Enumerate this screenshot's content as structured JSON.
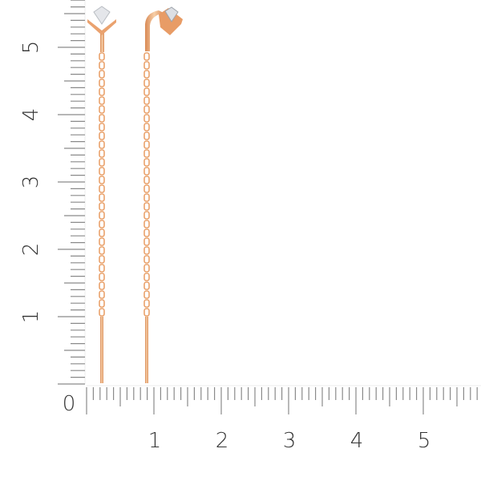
{
  "ruler": {
    "unit_labels_x": [
      "0",
      "1",
      "2",
      "3",
      "4",
      "5"
    ],
    "unit_labels_y": [
      "1",
      "2",
      "3",
      "4",
      "5"
    ],
    "tick_color": "#8a8a8a",
    "label_color": "#333333"
  },
  "product": {
    "metal_color": "#e9a16b",
    "metal_highlight": "#f7cfa8",
    "stone_color": "#e4e6ea"
  }
}
